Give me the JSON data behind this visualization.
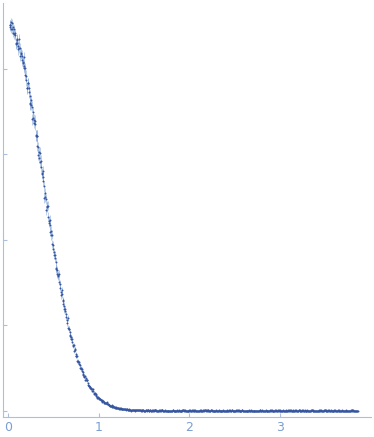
{
  "title": "",
  "xlabel": "",
  "ylabel": "",
  "xlim": [
    -0.05,
    4.0
  ],
  "x_ticks": [
    0,
    1,
    2,
    3
  ],
  "point_color": "#3555a0",
  "errorbar_color": "#7a9fd4",
  "bg_color": "#ffffff",
  "spine_color": "#aac0e0",
  "tick_color": "#aac0e0",
  "tick_label_color": "#7a9fd4",
  "marker_size": 2.0,
  "n_points": 750,
  "seed": 42,
  "Rg": 3.2,
  "I0": 0.9,
  "q_min": 0.02,
  "q_max": 3.85
}
